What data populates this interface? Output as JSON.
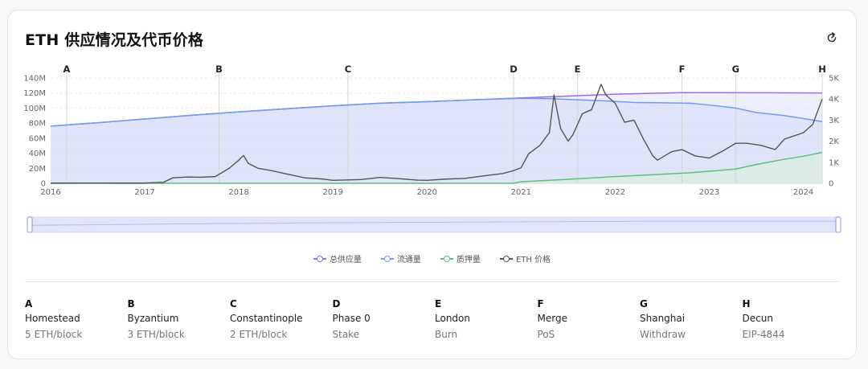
{
  "title": "ETH 供应情况及代币价格",
  "icons": {
    "refresh": "refresh-icon"
  },
  "colors": {
    "total_supply": "#9b6bec",
    "circulating": "#6f9cf1",
    "staked": "#5dbf7b",
    "price": "#555555",
    "band_fill": "#dfe1fa"
  },
  "legend": [
    {
      "key": "total_supply",
      "label": "总供应量"
    },
    {
      "key": "circulating",
      "label": "流通量"
    },
    {
      "key": "staked",
      "label": "质押量"
    },
    {
      "key": "price",
      "label": "ETH 价格"
    }
  ],
  "events": [
    {
      "letter": "A",
      "name": "Homestead",
      "detail": "5 ETH/block",
      "date": 2016.17
    },
    {
      "letter": "B",
      "name": "Byzantium",
      "detail": "3 ETH/block",
      "date": 2017.79
    },
    {
      "letter": "C",
      "name": "Constantinople",
      "detail": "2 ETH/block",
      "date": 2019.16
    },
    {
      "letter": "D",
      "name": "Phase 0",
      "detail": "Stake",
      "date": 2020.92
    },
    {
      "letter": "E",
      "name": "London",
      "detail": "Burn",
      "date": 2021.6
    },
    {
      "letter": "F",
      "name": "Merge",
      "detail": "PoS",
      "date": 2022.71
    },
    {
      "letter": "G",
      "name": "Shanghai",
      "detail": "Withdraw",
      "date": 2023.28
    },
    {
      "letter": "H",
      "name": "Decun",
      "detail": "EIP-4844",
      "date": 2024.2
    }
  ],
  "chart_data": {
    "type": "line",
    "x_ticks": [
      "2016",
      "2017",
      "2018",
      "2019",
      "2020",
      "2021",
      "2022",
      "2023",
      "2024"
    ],
    "xlim": [
      2016.0,
      2024.2
    ],
    "y_left_ticks": [
      "0",
      "20M",
      "40M",
      "60M",
      "80M",
      "100M",
      "120M",
      "140M"
    ],
    "y_left_lim": [
      0,
      140
    ],
    "y_right_ticks": [
      "0",
      "1K",
      "2K",
      "3K",
      "4K",
      "5K"
    ],
    "y_right_lim": [
      0,
      5000
    ],
    "series": [
      {
        "name": "总供应量",
        "axis": "left",
        "x": [
          2016.0,
          2016.5,
          2017.0,
          2017.5,
          2018.0,
          2018.5,
          2019.0,
          2019.5,
          2020.0,
          2020.5,
          2021.0,
          2021.5,
          2022.0,
          2022.5,
          2022.71,
          2023.0,
          2023.5,
          2024.0,
          2024.2
        ],
        "values": [
          76,
          80.5,
          85.5,
          90.5,
          95,
          99,
          103,
          106.5,
          108.5,
          111,
          113.5,
          116,
          118.5,
          120,
          120.5,
          120.5,
          120.3,
          120.2,
          120.1
        ]
      },
      {
        "name": "流通量",
        "axis": "left",
        "x": [
          2016.0,
          2016.5,
          2017.0,
          2017.5,
          2018.0,
          2018.5,
          2019.0,
          2019.5,
          2020.0,
          2020.5,
          2021.0,
          2021.3,
          2021.6,
          2021.9,
          2022.2,
          2022.5,
          2022.8,
          2023.0,
          2023.28,
          2023.5,
          2023.8,
          2024.0,
          2024.2
        ],
        "values": [
          76,
          80.5,
          85.5,
          90.5,
          95,
          99,
          103,
          106.5,
          108.5,
          111,
          113,
          112.5,
          111,
          109.5,
          107.5,
          107,
          106.5,
          104,
          100,
          94,
          90,
          86,
          82
        ]
      },
      {
        "name": "质押量",
        "axis": "left",
        "x": [
          2016.0,
          2020.92,
          2021.0,
          2021.3,
          2021.6,
          2022.0,
          2022.5,
          2022.8,
          2023.0,
          2023.28,
          2023.5,
          2023.8,
          2024.0,
          2024.2
        ],
        "values": [
          0,
          0,
          2,
          4,
          6,
          9,
          12,
          14,
          16,
          19,
          25,
          32,
          36,
          41
        ]
      },
      {
        "name": "ETH 价格",
        "axis": "right",
        "x": [
          2016.0,
          2016.4,
          2016.8,
          2017.0,
          2017.2,
          2017.3,
          2017.45,
          2017.6,
          2017.75,
          2017.9,
          2018.0,
          2018.05,
          2018.1,
          2018.2,
          2018.35,
          2018.5,
          2018.7,
          2018.9,
          2019.0,
          2019.3,
          2019.5,
          2019.7,
          2019.9,
          2020.0,
          2020.2,
          2020.4,
          2020.6,
          2020.8,
          2020.92,
          2021.0,
          2021.08,
          2021.2,
          2021.3,
          2021.35,
          2021.42,
          2021.5,
          2021.55,
          2021.65,
          2021.75,
          2021.85,
          2021.9,
          2022.0,
          2022.1,
          2022.2,
          2022.3,
          2022.4,
          2022.45,
          2022.6,
          2022.71,
          2022.85,
          2023.0,
          2023.15,
          2023.28,
          2023.4,
          2023.55,
          2023.7,
          2023.8,
          2023.9,
          2024.0,
          2024.1,
          2024.2
        ],
        "values": [
          10,
          12,
          10,
          10,
          50,
          260,
          300,
          290,
          320,
          720,
          1100,
          1320,
          950,
          720,
          600,
          450,
          260,
          200,
          140,
          180,
          280,
          220,
          150,
          140,
          200,
          230,
          350,
          460,
          600,
          740,
          1400,
          1800,
          2400,
          4200,
          2600,
          2000,
          2300,
          3300,
          3500,
          4700,
          4200,
          3800,
          2900,
          3000,
          2100,
          1300,
          1100,
          1500,
          1600,
          1300,
          1200,
          1550,
          1900,
          1900,
          1800,
          1600,
          2100,
          2250,
          2400,
          2800,
          4000
        ]
      }
    ]
  }
}
